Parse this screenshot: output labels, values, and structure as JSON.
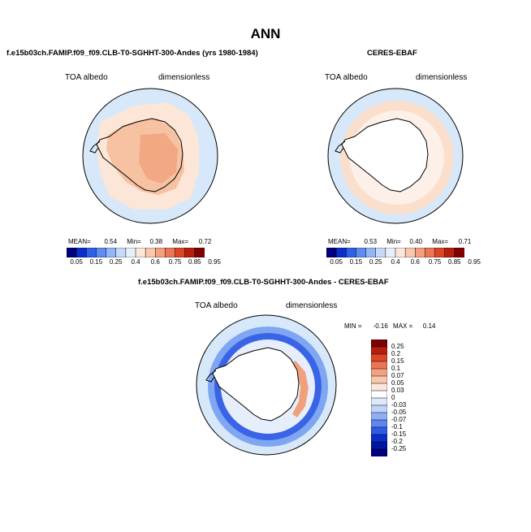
{
  "page": {
    "title": "ANN"
  },
  "panels": [
    {
      "id": "model",
      "run_title": "f.e15b03ch.FAMIP.f09_f09.CLB-T0-SGHHT-300-Andes (yrs 1980-1984)",
      "left_label": "TOA albedo",
      "right_label": "dimensionless",
      "stats": {
        "mean_label": "MEAN=",
        "mean": "0.54",
        "min_label": "Min=",
        "min": "0.38",
        "max_label": "Max=",
        "max": "0.72"
      }
    },
    {
      "id": "obs",
      "run_title": "CERES-EBAF",
      "left_label": "TOA albedo",
      "right_label": "dimensionless",
      "stats": {
        "mean_label": "MEAN=",
        "mean": "0.53",
        "min_label": "Min=",
        "min": "0.40",
        "max_label": "Max=",
        "max": "0.71"
      }
    }
  ],
  "diff_panel": {
    "run_title": "f.e15b03ch.FAMIP.f09_f09.CLB-T0-SGHHT-300-Andes - CERES-EBAF",
    "left_label": "TOA albedo",
    "right_label": "dimensionless",
    "minmax": {
      "min_label": "MIN =",
      "min": "-0.16",
      "max_label": "MAX =",
      "max": "0.14"
    }
  },
  "chart_data": [
    {
      "type": "heatmap",
      "projection": "south-polar-stereographic",
      "title": "f.e15b03ch.FAMIP.f09_f09.CLB-T0-SGHHT-300-Andes (yrs 1980-1984)",
      "variable": "TOA albedo",
      "units": "dimensionless",
      "mean": 0.54,
      "min": 0.38,
      "max": 0.72,
      "colorbar": {
        "orientation": "horizontal",
        "labels": [
          "0.05",
          "0.15",
          "0.25",
          "0.4",
          "0.6",
          "0.75",
          "0.85",
          "0.95"
        ],
        "colors": [
          "#00007f",
          "#0a2fc8",
          "#2f60e8",
          "#5f8cf2",
          "#92b6f7",
          "#c7daf9",
          "#e8f0fb",
          "#fde6da",
          "#f9c8ac",
          "#f4a07e",
          "#ec7554",
          "#dc4526",
          "#b51f0d",
          "#7f0000"
        ]
      }
    },
    {
      "type": "heatmap",
      "projection": "south-polar-stereographic",
      "title": "CERES-EBAF",
      "variable": "TOA albedo",
      "units": "dimensionless",
      "mean": 0.53,
      "min": 0.4,
      "max": 0.71,
      "colorbar": {
        "orientation": "horizontal",
        "labels": [
          "0.05",
          "0.15",
          "0.25",
          "0.4",
          "0.6",
          "0.75",
          "0.85",
          "0.95"
        ],
        "colors": [
          "#00007f",
          "#0a2fc8",
          "#2f60e8",
          "#5f8cf2",
          "#92b6f7",
          "#c7daf9",
          "#e8f0fb",
          "#fde6da",
          "#f9c8ac",
          "#f4a07e",
          "#ec7554",
          "#dc4526",
          "#b51f0d",
          "#7f0000"
        ]
      }
    },
    {
      "type": "heatmap",
      "projection": "south-polar-stereographic",
      "title": "f.e15b03ch.FAMIP.f09_f09.CLB-T0-SGHHT-300-Andes - CERES-EBAF",
      "variable": "TOA albedo",
      "units": "dimensionless",
      "min": -0.16,
      "max": 0.14,
      "colorbar": {
        "orientation": "vertical",
        "labels": [
          "0.25",
          "0.2",
          "0.15",
          "0.1",
          "0.07",
          "0.05",
          "0.03",
          "0",
          "-0.03",
          "-0.05",
          "-0.07",
          "-0.1",
          "-0.15",
          "-0.2",
          "-0.25"
        ],
        "colors": [
          "#7f0000",
          "#b51f0d",
          "#dc4526",
          "#ec7554",
          "#f4a07e",
          "#f9c8ac",
          "#fde6da",
          "#ffffff",
          "#dde8fa",
          "#c0d4f8",
          "#8fb0f4",
          "#5e86ee",
          "#2f5be4",
          "#0a2fc8",
          "#00169e",
          "#00007f"
        ]
      }
    }
  ]
}
